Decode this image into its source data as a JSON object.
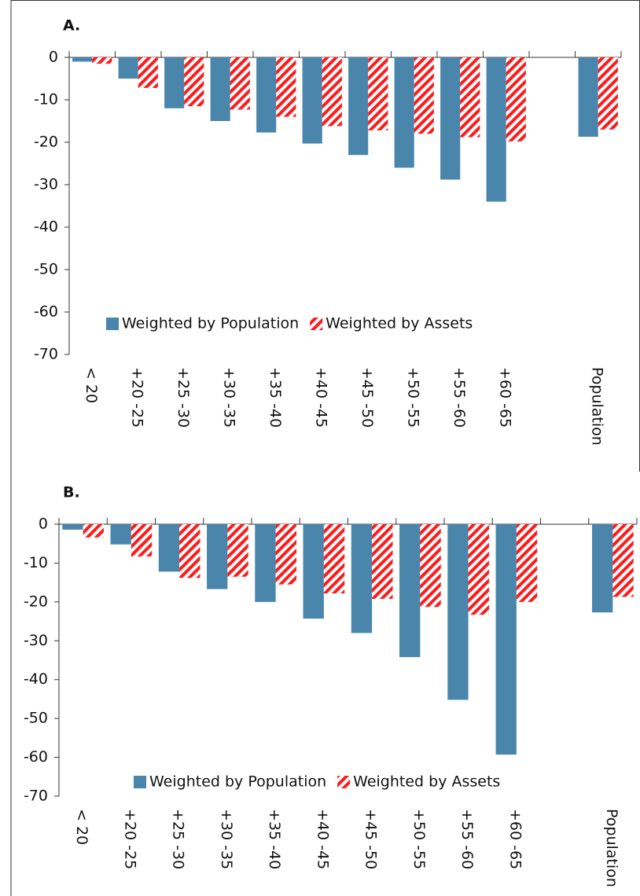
{
  "chart_data": [
    {
      "type": "bar",
      "title": "A.",
      "categories": [
        "< 20",
        "+20 -25",
        "+25 -30",
        "+30 -35",
        "+35 -40",
        "+40 -45",
        "+45 -50",
        "+50 -55",
        "+55 -60",
        "+60 -65",
        null,
        "Population"
      ],
      "series": [
        {
          "name": "Weighted by Population",
          "color": "#4a86ab",
          "values": [
            -1,
            -5,
            -12,
            -15,
            -17.7,
            -20.3,
            -23,
            -26,
            -28.8,
            -34,
            null,
            -18.7
          ]
        },
        {
          "name": "Weighted by Assets",
          "color": "#ff1a1a",
          "values": [
            -1.5,
            -7.2,
            -11.5,
            -12.3,
            -14,
            -16.2,
            -17.2,
            -18,
            -18.8,
            -19.8,
            null,
            -17
          ]
        }
      ],
      "ylim": [
        -70,
        0
      ],
      "yticks": [
        0,
        -10,
        -20,
        -30,
        -40,
        -50,
        -60,
        -70
      ]
    },
    {
      "type": "bar",
      "title": "B.",
      "categories": [
        "< 20",
        "+20 -25",
        "+25 -30",
        "+30 -35",
        "+35 -40",
        "+40 -45",
        "+45 -50",
        "+50 -55",
        "+55 -60",
        "+60 -65",
        null,
        "Population"
      ],
      "series": [
        {
          "name": "Weighted by Population",
          "color": "#4a86ab",
          "values": [
            -1.4,
            -5.2,
            -12.2,
            -16.7,
            -20,
            -24.3,
            -28,
            -34.2,
            -45.2,
            -59.3,
            null,
            -22.7
          ]
        },
        {
          "name": "Weighted by Assets",
          "color": "#ff1a1a",
          "values": [
            -3.4,
            -8.3,
            -13.8,
            -13.5,
            -15.5,
            -17.8,
            -19.2,
            -21.3,
            -23.3,
            -20,
            null,
            -18.7
          ]
        }
      ],
      "ylim": [
        -70,
        0
      ],
      "yticks": [
        0,
        -10,
        -20,
        -30,
        -40,
        -50,
        -60,
        -70
      ]
    }
  ]
}
